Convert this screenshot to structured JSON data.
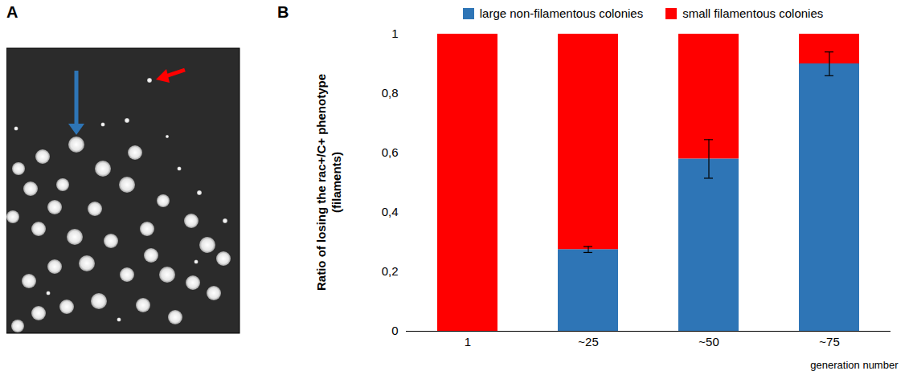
{
  "panel_labels": [
    "A",
    "B"
  ],
  "chart_data": {
    "type": "bar",
    "stacked": true,
    "legend": "top",
    "grid": false,
    "ylabel": "Ratio of losing the rac+/C+ phenotype (filaments)",
    "xlabel": "generation number",
    "categories": [
      "1",
      "~25",
      "~50",
      "~75"
    ],
    "series": [
      {
        "name": "large non-filamentous colonies",
        "color": "#2e75b6",
        "values": [
          0,
          0.275,
          0.58,
          0.9
        ],
        "errors": [
          null,
          0.01,
          0.065,
          0.04
        ]
      },
      {
        "name": "small filamentous colonies",
        "color": "#ff0000",
        "values": [
          1,
          0.725,
          0.42,
          0.1
        ]
      }
    ],
    "ylim": [
      0,
      1
    ],
    "yticks": [
      0,
      {
        "value": 0.2,
        "label": "0,2"
      },
      {
        "value": 0.4,
        "label": "0,4"
      },
      {
        "value": 0.6,
        "label": "0,6"
      },
      {
        "value": 0.8,
        "label": "0,8"
      },
      1
    ]
  }
}
